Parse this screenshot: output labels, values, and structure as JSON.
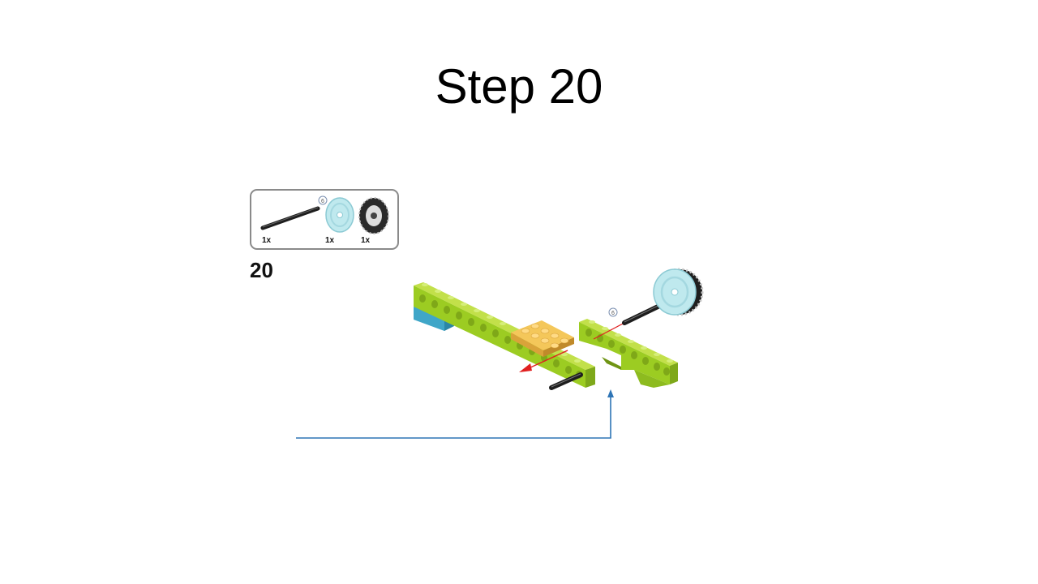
{
  "slide": {
    "title": "Step 20"
  },
  "instructions": {
    "step_number": "20",
    "parts": [
      {
        "name": "axle",
        "quantity": "1x"
      },
      {
        "name": "wheel-hub",
        "quantity": "1x"
      },
      {
        "name": "tire",
        "quantity": "1x"
      }
    ],
    "axle_length_callout": "6",
    "connector_color": "#2e75b6"
  }
}
